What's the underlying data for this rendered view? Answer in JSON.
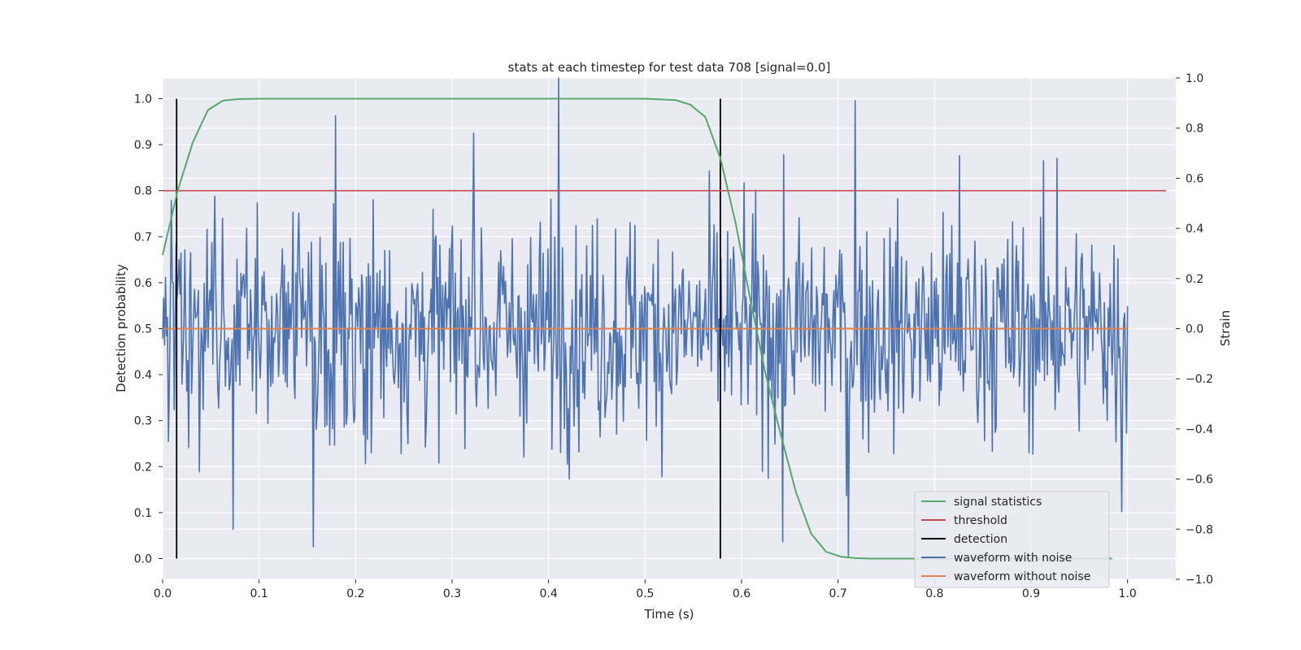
{
  "chart_data": {
    "type": "line",
    "title": "stats at each timestep for test data 708 [signal=0.0]",
    "xlabel": "Time (s)",
    "ylabel_left": "Detection probability",
    "ylabel_right": "Strain",
    "xlim": [
      0.0,
      1.05
    ],
    "ylim_left": [
      -0.045,
      1.045
    ],
    "ylim_right": [
      -1.0,
      1.0
    ],
    "x_ticks": [
      "0.0",
      "0.1",
      "0.2",
      "0.3",
      "0.4",
      "0.5",
      "0.6",
      "0.7",
      "0.8",
      "0.9",
      "1.0"
    ],
    "y_ticks_left": [
      "0.0",
      "0.1",
      "0.2",
      "0.3",
      "0.4",
      "0.5",
      "0.6",
      "0.7",
      "0.8",
      "0.9",
      "1.0"
    ],
    "y_ticks_right": [
      "−1.0",
      "−0.8",
      "−0.6",
      "−0.4",
      "−0.2",
      "0.0",
      "0.2",
      "0.4",
      "0.6",
      "0.8",
      "1.0"
    ],
    "grid": true,
    "legend_position": "lower-right",
    "colors": {
      "background": "#eaeaf2",
      "grid": "#ffffff",
      "signal_statistics": "#55a868",
      "threshold": "#c44e52",
      "detection": "#000000",
      "waveform_with_noise": "#4c72b0",
      "waveform_without_noise": "#dd8452"
    },
    "series": [
      {
        "name": "signal statistics",
        "axis": "left",
        "x": [
          0.0,
          0.0156,
          0.0313,
          0.0469,
          0.0625,
          0.0781,
          0.1,
          0.2,
          0.3,
          0.4,
          0.5,
          0.5313,
          0.5469,
          0.5625,
          0.5781,
          0.5938,
          0.6094,
          0.625,
          0.6406,
          0.6563,
          0.6719,
          0.6875,
          0.7031,
          0.7188,
          0.7344,
          0.75,
          0.8,
          0.9,
          0.984
        ],
        "y": [
          0.66,
          0.8,
          0.905,
          0.975,
          0.996,
          0.999,
          1.0,
          1.0,
          1.0,
          1.0,
          1.0,
          0.997,
          0.987,
          0.96,
          0.87,
          0.73,
          0.56,
          0.4,
          0.27,
          0.145,
          0.055,
          0.015,
          0.004,
          0.001,
          0.0,
          0.0,
          0.0,
          0.0,
          0.0
        ]
      },
      {
        "name": "threshold",
        "axis": "left",
        "x": [
          0.0,
          1.04
        ],
        "y": [
          0.8,
          0.8
        ]
      },
      {
        "name": "detection",
        "axis": "left",
        "vlines": [
          0.0145,
          0.578
        ],
        "ymin": 0.0,
        "ymax": 1.0
      },
      {
        "name": "waveform with noise",
        "axis": "right",
        "sample_count": 1000,
        "x_range": [
          0.0,
          1.0
        ],
        "amplitude_std": 0.22,
        "peaks": [
          {
            "x": 0.006,
            "y": -0.45
          },
          {
            "x": 0.073,
            "y": -0.8
          },
          {
            "x": 0.156,
            "y": -0.87
          },
          {
            "x": 0.179,
            "y": 0.85
          },
          {
            "x": 0.322,
            "y": 0.78
          },
          {
            "x": 0.41,
            "y": 1.0
          },
          {
            "x": 0.643,
            "y": -0.85
          },
          {
            "x": 0.711,
            "y": -0.91
          },
          {
            "x": 0.718,
            "y": 0.91
          },
          {
            "x": 0.826,
            "y": 0.69
          },
          {
            "x": 0.927,
            "y": 0.68
          },
          {
            "x": 0.994,
            "y": -0.73
          }
        ]
      },
      {
        "name": "waveform without noise",
        "axis": "right",
        "x": [
          0.0,
          1.0
        ],
        "y": [
          0.0,
          0.0
        ]
      }
    ]
  }
}
